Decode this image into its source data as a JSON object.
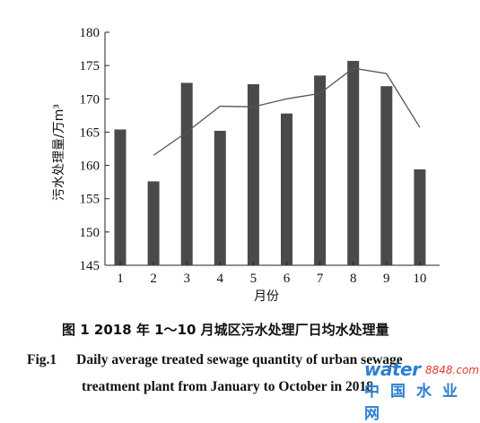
{
  "chart_data": {
    "type": "bar",
    "categories": [
      "1",
      "2",
      "3",
      "4",
      "5",
      "6",
      "7",
      "8",
      "9",
      "10"
    ],
    "series": [
      {
        "kind": "bar",
        "values": [
          165.4,
          157.6,
          172.4,
          165.2,
          172.2,
          167.8,
          173.5,
          175.7,
          171.9,
          159.4
        ]
      },
      {
        "kind": "line",
        "values": [
          null,
          161.5,
          165.0,
          168.9,
          168.8,
          170.0,
          170.8,
          174.6,
          173.8,
          165.7
        ]
      }
    ],
    "xlabel": "月份",
    "ylabel": "污水处理量/万m³",
    "ylim": [
      145,
      180
    ],
    "yticks": [
      145,
      150,
      155,
      160,
      165,
      170,
      175,
      180
    ],
    "grid": false,
    "bar_color": "#4a4a4a",
    "line_color": "#555555"
  },
  "caption": {
    "cn": "图 1   2018 年 1～10 月城区污水处理厂日均水处理量",
    "en_fig": "Fig.1",
    "en_line1": "Daily average treated sewage quantity of urban sewage",
    "en_line2": "treatment plant from January to October in 2018"
  },
  "watermark": {
    "brand": "water",
    "number": "8848",
    "domain": ".com",
    "cn": "中国水业网"
  }
}
